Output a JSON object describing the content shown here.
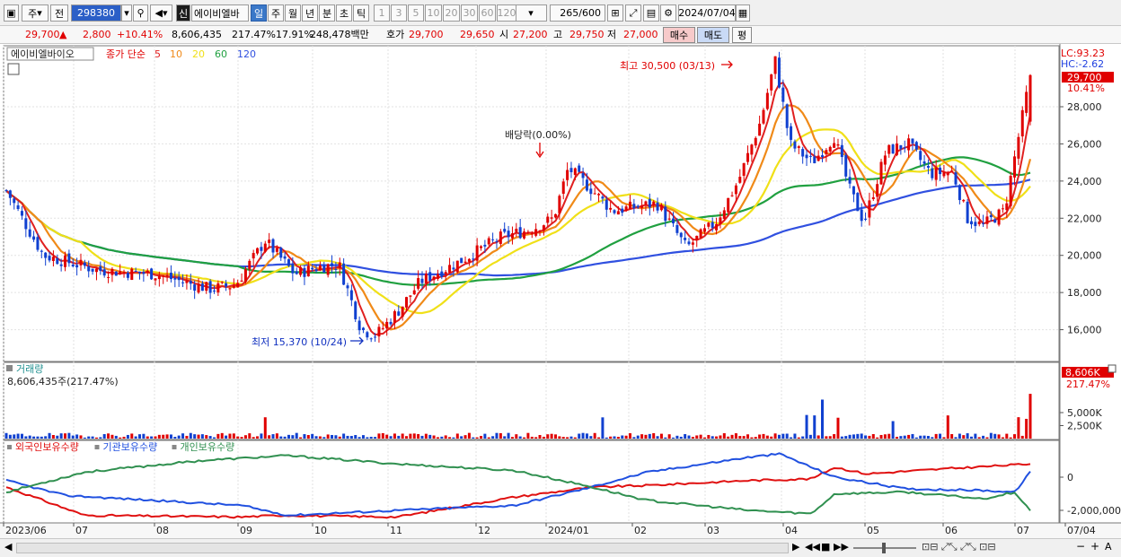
{
  "toolbar": {
    "mode_stock": "주",
    "mode_prev": "전",
    "code": "298380",
    "new_badge": "신",
    "stock_name": "에이비엘바",
    "periods": [
      "일",
      "주",
      "월",
      "년",
      "분",
      "초",
      "틱"
    ],
    "minutes": [
      "1",
      "3",
      "5",
      "10",
      "20",
      "30",
      "60",
      "120"
    ],
    "count": "265",
    "count_max": "/600",
    "date": "2024/07/04"
  },
  "info": {
    "price": "29,700",
    "change": "2,800",
    "change_pct": "+10.41%",
    "volume": "8,606,435",
    "volume_ratio": "217.47%",
    "turnover": "17.91%",
    "amount": "248,478백만",
    "quote_label": "호가",
    "ask": "29,700",
    "bid": "29,650",
    "open_label": "시",
    "open": "27,200",
    "high_label": "고",
    "high": "29,750",
    "low_label": "저",
    "low": "27,000",
    "buy": "매수",
    "sell": "매도",
    "eval": "평"
  },
  "price_panel": {
    "name": "에이비엘바이오",
    "legend_title": "종가 단순",
    "ma_periods": [
      "5",
      "10",
      "20",
      "60",
      "120"
    ],
    "colors": {
      "ma5": "#e02020",
      "ma10": "#f08a18",
      "ma20": "#f0e018",
      "ma60": "#20a040",
      "ma120": "#3050e0",
      "up": "#e00000",
      "down": "#1040d0"
    },
    "lc": "LC:93.23",
    "hc": "HC:-2.62",
    "last_price": "29,700",
    "last_pct": "10.41%",
    "annotations": {
      "high": "최고 30,500 (03/13)",
      "low": "최저 15,370 (10/24)",
      "dividend": "배당락(0.00%)"
    },
    "y_ticks": [
      "28,000",
      "26,000",
      "24,000",
      "22,000",
      "20,000",
      "18,000",
      "16,000"
    ]
  },
  "volume_panel": {
    "title": "거래량",
    "value": "8,606,435주(217.47%)",
    "last_value": "8,606K",
    "last_pct": "217.47%",
    "y_ticks": [
      "5,000K",
      "2,500K"
    ]
  },
  "holdings_panel": {
    "legend": [
      "외국인보유수량",
      "기관보유수량",
      "개인보유수량"
    ],
    "colors": [
      "#e01010",
      "#2050e0",
      "#309050"
    ],
    "y_ticks": [
      "0",
      "-2,000,000"
    ]
  },
  "x_axis": {
    "labels": [
      "2023/06",
      "07",
      "08",
      "09",
      "10",
      "11",
      "12",
      "2024/01",
      "02",
      "03",
      "04",
      "05",
      "06",
      "07",
      "07/04"
    ]
  }
}
